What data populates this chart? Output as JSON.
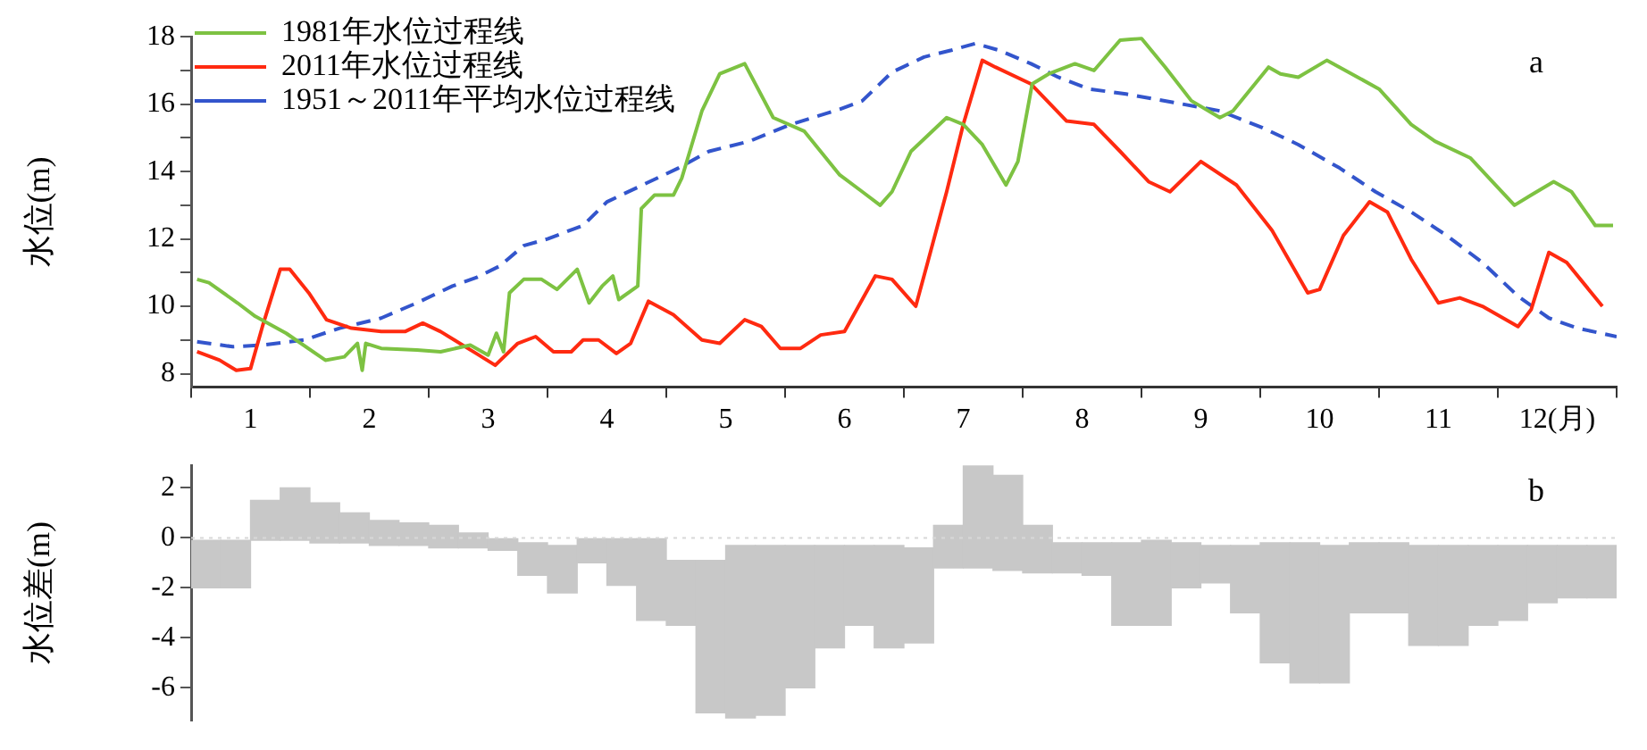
{
  "chart_data": [
    {
      "type": "line",
      "ylabel": "水位(m)",
      "annotations": [
        "a"
      ],
      "legend": "top left",
      "marker": "none",
      "grid": false,
      "xlim": [
        0,
        12
      ],
      "xticks": [
        {
          "value": 0,
          "label": null
        },
        {
          "value": 0.5,
          "label": "1"
        },
        {
          "value": 1,
          "label": null
        },
        {
          "value": 1.5,
          "label": "2"
        },
        {
          "value": 2,
          "label": null
        },
        {
          "value": 2.5,
          "label": "3"
        },
        {
          "value": 3,
          "label": null
        },
        {
          "value": 3.5,
          "label": "4"
        },
        {
          "value": 4,
          "label": null
        },
        {
          "value": 4.5,
          "label": "5"
        },
        {
          "value": 5,
          "label": null
        },
        {
          "value": 5.5,
          "label": "6"
        },
        {
          "value": 6,
          "label": null
        },
        {
          "value": 6.5,
          "label": "7"
        },
        {
          "value": 7,
          "label": null
        },
        {
          "value": 7.5,
          "label": "8"
        },
        {
          "value": 8,
          "label": null
        },
        {
          "value": 8.5,
          "label": "9"
        },
        {
          "value": 9,
          "label": null
        },
        {
          "value": 9.5,
          "label": "10"
        },
        {
          "value": 10,
          "label": null
        },
        {
          "value": 10.5,
          "label": "11"
        },
        {
          "value": 11,
          "label": null
        },
        {
          "value": 11.5,
          "label": "12(月)"
        },
        {
          "value": 12,
          "label": null
        }
      ],
      "ylim": [
        7.6,
        18
      ],
      "yticks": [
        8,
        {
          "value": 9,
          "label": null
        },
        10,
        {
          "value": 11,
          "label": null
        },
        12,
        {
          "value": 13,
          "label": null
        },
        14,
        {
          "value": 15,
          "label": null
        },
        16,
        {
          "value": 17,
          "label": null
        },
        18
      ],
      "series": [
        {
          "name": "1981年水位过程线",
          "color": "#7dc242",
          "x": [
            0.05,
            0.15,
            0.39,
            0.54,
            0.8,
            1.13,
            1.29,
            1.4,
            1.44,
            1.47,
            1.6,
            1.9,
            2.1,
            2.35,
            2.5,
            2.57,
            2.63,
            2.68,
            2.8,
            2.95,
            3.08,
            3.25,
            3.35,
            3.46,
            3.55,
            3.6,
            3.76,
            3.79,
            3.9,
            4.06,
            4.13,
            4.3,
            4.45,
            4.66,
            4.9,
            5.16,
            5.46,
            5.65,
            5.8,
            5.9,
            6.06,
            6.36,
            6.5,
            6.66,
            6.86,
            6.96,
            7.08,
            7.22,
            7.44,
            7.6,
            7.82,
            8.0,
            8.2,
            8.42,
            8.66,
            8.77,
            9.07,
            9.17,
            9.32,
            9.56,
            9.82,
            10.0,
            10.27,
            10.47,
            10.77,
            10.98,
            11.14,
            11.28,
            11.47,
            11.62,
            11.82,
            11.97
          ],
          "values": [
            10.8,
            10.7,
            10.1,
            9.7,
            9.2,
            8.4,
            8.5,
            8.9,
            8.1,
            8.9,
            8.75,
            8.7,
            8.65,
            8.85,
            8.55,
            9.2,
            8.65,
            10.4,
            10.8,
            10.8,
            10.5,
            11.1,
            10.1,
            10.6,
            10.9,
            10.2,
            10.6,
            12.9,
            13.3,
            13.3,
            13.8,
            15.8,
            16.9,
            17.2,
            15.6,
            15.2,
            13.9,
            13.4,
            13.0,
            13.4,
            14.6,
            15.6,
            15.4,
            14.8,
            13.6,
            14.3,
            16.6,
            16.9,
            17.2,
            17.0,
            17.9,
            17.95,
            17.1,
            16.1,
            15.6,
            15.8,
            17.1,
            16.9,
            16.8,
            17.3,
            16.8,
            16.45,
            15.4,
            14.9,
            14.4,
            13.6,
            13.0,
            13.3,
            13.7,
            13.4,
            12.4,
            12.4
          ]
        },
        {
          "name": "2011年水位过程线",
          "color": "#ff2a10",
          "x": [
            0.05,
            0.24,
            0.38,
            0.5,
            0.6,
            0.75,
            0.83,
            0.99,
            1.14,
            1.35,
            1.6,
            1.8,
            1.95,
            2.1,
            2.4,
            2.56,
            2.75,
            2.9,
            3.05,
            3.2,
            3.3,
            3.43,
            3.58,
            3.7,
            3.85,
            4.06,
            4.3,
            4.45,
            4.66,
            4.8,
            4.96,
            5.13,
            5.3,
            5.5,
            5.76,
            5.9,
            6.1,
            6.2,
            6.36,
            6.5,
            6.66,
            6.77,
            7.07,
            7.37,
            7.6,
            7.82,
            8.06,
            8.24,
            8.5,
            8.8,
            9.1,
            9.4,
            9.5,
            9.7,
            9.92,
            10.07,
            10.27,
            10.5,
            10.68,
            10.87,
            11.17,
            11.28,
            11.43,
            11.58,
            11.88
          ],
          "values": [
            8.65,
            8.4,
            8.1,
            8.15,
            9.4,
            11.1,
            11.1,
            10.4,
            9.6,
            9.35,
            9.25,
            9.25,
            9.5,
            9.25,
            8.6,
            8.25,
            8.9,
            9.1,
            8.65,
            8.65,
            9.0,
            9.0,
            8.6,
            8.9,
            10.15,
            9.75,
            9.0,
            8.9,
            9.6,
            9.4,
            8.75,
            8.75,
            9.15,
            9.25,
            10.9,
            10.8,
            10.0,
            11.3,
            13.4,
            15.4,
            17.3,
            17.1,
            16.6,
            15.5,
            15.4,
            14.6,
            13.7,
            13.4,
            14.3,
            13.6,
            12.25,
            10.4,
            10.5,
            12.1,
            13.1,
            12.8,
            11.4,
            10.1,
            10.25,
            10.0,
            9.4,
            9.9,
            11.6,
            11.3,
            10.0
          ]
        },
        {
          "name": "1951～2011年平均水位过程线",
          "color": "#3355cc",
          "line_style": "dashed",
          "x": [
            0.05,
            0.35,
            0.6,
            0.95,
            1.25,
            1.6,
            1.9,
            2.2,
            2.4,
            2.6,
            2.8,
            3.0,
            3.3,
            3.5,
            3.8,
            4.1,
            4.36,
            4.7,
            5.05,
            5.46,
            5.65,
            5.9,
            6.17,
            6.4,
            6.6,
            6.8,
            7.07,
            7.3,
            7.56,
            7.87,
            8.27,
            8.66,
            9.02,
            9.32,
            9.67,
            9.97,
            10.27,
            10.57,
            10.87,
            11.17,
            11.43,
            11.67,
            12.0
          ],
          "values": [
            8.95,
            8.8,
            8.85,
            9.0,
            9.35,
            9.65,
            10.1,
            10.6,
            10.85,
            11.2,
            11.8,
            12.0,
            12.4,
            13.1,
            13.6,
            14.1,
            14.6,
            14.9,
            15.4,
            15.85,
            16.1,
            16.95,
            17.4,
            17.6,
            17.8,
            17.6,
            17.2,
            16.8,
            16.45,
            16.3,
            16.05,
            15.8,
            15.3,
            14.8,
            14.1,
            13.4,
            12.8,
            12.1,
            11.3,
            10.3,
            9.65,
            9.35,
            9.1
          ]
        }
      ]
    },
    {
      "type": "bar",
      "ylabel": "水位差(m)",
      "annotations": [
        "b"
      ],
      "grid": false,
      "tick_labels": "y",
      "color": "#c8c8c8",
      "xlim": [
        0,
        12
      ],
      "ylim": [
        -7.3,
        2.9
      ],
      "yticks": [
        -6,
        -4,
        -2,
        0,
        2
      ],
      "ref_lines": [
        {
          "axis": "y",
          "value": 0,
          "color": "#d8d8d8",
          "line_style": "dotted"
        }
      ],
      "x": [
        0.125,
        0.375,
        0.625,
        0.875,
        1.125,
        1.375,
        1.625,
        1.875,
        2.125,
        2.375,
        2.625,
        2.875,
        3.125,
        3.375,
        3.625,
        3.875,
        4.125,
        4.375,
        4.625,
        4.875,
        5.125,
        5.375,
        5.625,
        5.875,
        6.125,
        6.375,
        6.625,
        6.875,
        7.125,
        7.375,
        7.625,
        7.875,
        8.125,
        8.375,
        8.625,
        8.875,
        9.125,
        9.375,
        9.625,
        9.875,
        10.125,
        10.375,
        10.625,
        10.875,
        11.125,
        11.375,
        11.625,
        11.875
      ],
      "base": [
        -2.0,
        -2.0,
        -0.1,
        -0.1,
        -0.2,
        -0.2,
        -0.3,
        -0.3,
        -0.4,
        -0.4,
        -0.5,
        -1.5,
        -2.2,
        -1.0,
        -1.9,
        -3.3,
        -3.5,
        -7.0,
        -7.2,
        -7.1,
        -6.0,
        -4.4,
        -3.5,
        -4.4,
        -4.2,
        -1.2,
        -1.2,
        -1.3,
        -1.4,
        -1.4,
        -1.5,
        -3.5,
        -3.5,
        -2.0,
        -1.8,
        -3.0,
        -5.0,
        -5.8,
        -5.8,
        -3.0,
        -3.0,
        -4.3,
        -4.3,
        -3.5,
        -3.3,
        -2.6,
        -2.4,
        -2.4
      ],
      "values": [
        1.9,
        1.9,
        1.6,
        2.1,
        1.6,
        1.2,
        1.0,
        0.9,
        0.9,
        0.6,
        0.5,
        1.3,
        1.9,
        1.0,
        1.9,
        3.3,
        2.6,
        6.1,
        6.9,
        6.8,
        5.7,
        4.1,
        3.2,
        4.1,
        3.8,
        1.7,
        4.1,
        3.8,
        1.9,
        1.2,
        1.3,
        3.3,
        3.4,
        1.8,
        1.5,
        2.7,
        4.8,
        5.6,
        5.5,
        2.8,
        2.8,
        4.0,
        4.0,
        3.2,
        3.0,
        2.3,
        2.1,
        2.1
      ]
    }
  ]
}
